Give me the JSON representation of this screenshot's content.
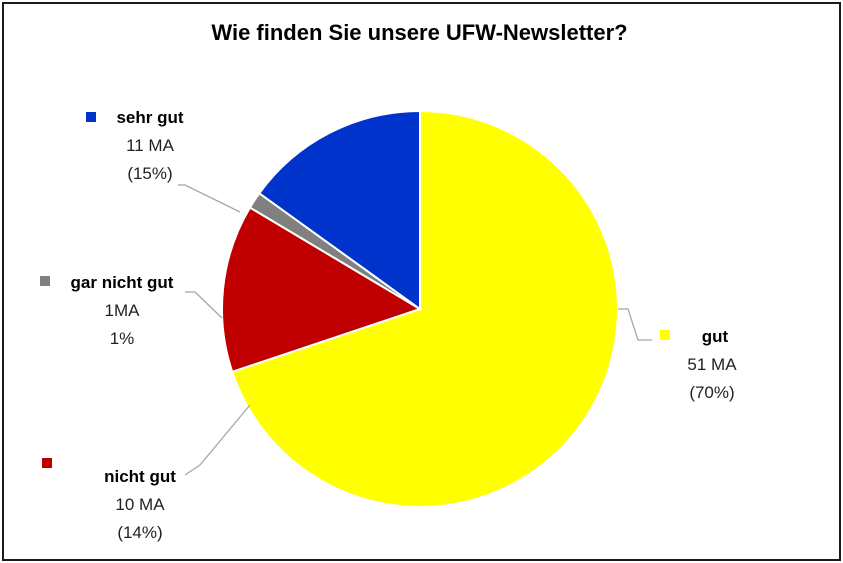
{
  "chart_data": {
    "type": "pie",
    "title": "Wie finden Sie unsere UFW-Newsletter?",
    "slices": [
      {
        "name": "gut",
        "value": 51,
        "count_label": "51 MA",
        "percent_label": "(70%)",
        "color": "#FFFF00"
      },
      {
        "name": "nicht gut",
        "value": 10,
        "count_label": "10 MA",
        "percent_label": "(14%)",
        "color": "#C00000"
      },
      {
        "name": "gar nicht gut",
        "value": 1,
        "count_label": "1MA",
        "percent_label": "1%",
        "color": "#808080"
      },
      {
        "name": "sehr gut",
        "value": 11,
        "count_label": "11 MA",
        "percent_label": "(15%)",
        "color": "#0033CC"
      }
    ],
    "start_angle_deg": 0,
    "legend": "none"
  }
}
